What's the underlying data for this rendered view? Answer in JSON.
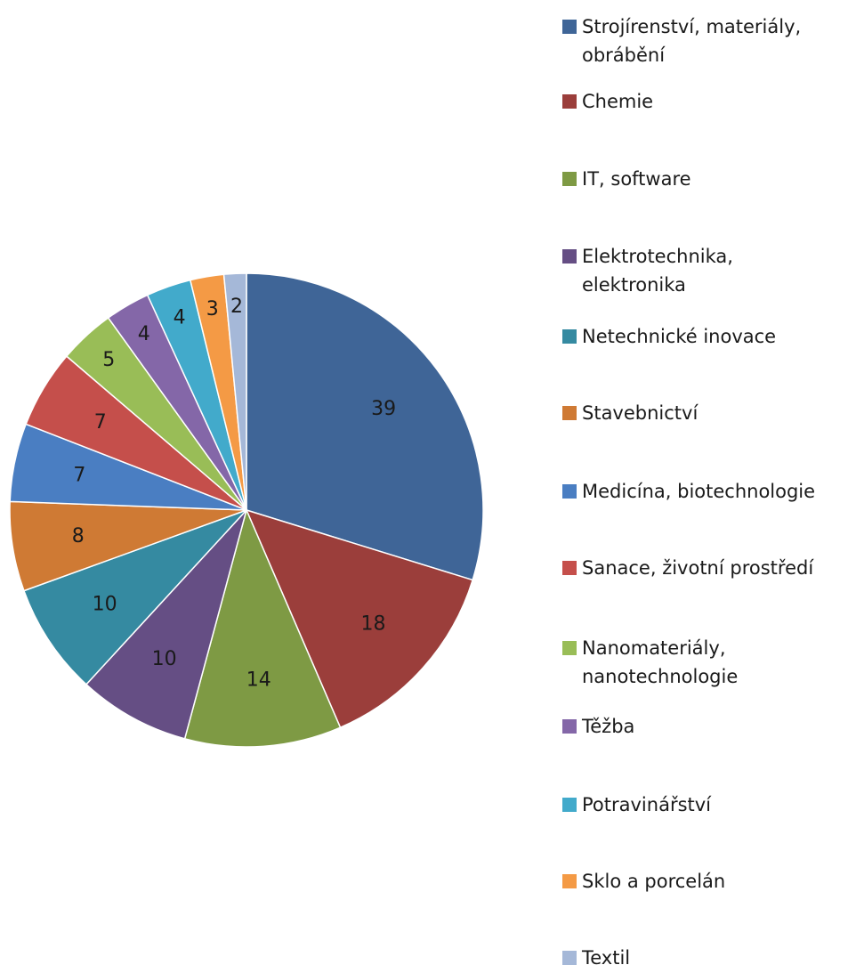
{
  "chart_data": {
    "type": "pie",
    "categories": [
      "Strojírenství, materiály, obrábění",
      "Chemie",
      "IT, software",
      "Elektrotechnika, elektronika",
      "Netechnické inovace",
      "Stavebnictví",
      "Medicína, biotechnologie",
      "Sanace, životní prostředí",
      "Nanomateriály, nanotechnologie",
      "Těžba",
      "Potravinářství",
      "Sklo a porcelán",
      "Textil"
    ],
    "legend_labels": [
      "Strojírenství, materiály,\nobrábění",
      "Chemie",
      "IT, software",
      "Elektrotechnika,\nelektronika",
      "Netechnické inovace",
      "Stavebnictví",
      "Medicína, biotechnologie",
      "Sanace, životní prostředí",
      "Nanomateriály,\nnanotechnologie",
      "Těžba",
      "Potravinářství",
      "Sklo a porcelán",
      "Textil"
    ],
    "values": [
      39,
      18,
      14,
      10,
      10,
      8,
      7,
      7,
      5,
      4,
      4,
      3,
      2
    ],
    "data_labels": [
      "39",
      "18",
      "14",
      "10",
      "10",
      "8",
      "7",
      "7",
      "5",
      "4",
      "4",
      "3",
      "2"
    ],
    "colors": [
      "#3F6597",
      "#9B3E3B",
      "#7E9A44",
      "#654E84",
      "#358AA1",
      "#CF7A34",
      "#4A7EC2",
      "#C54F4B",
      "#99BD57",
      "#8467A8",
      "#42AACB",
      "#F49A45",
      "#A5B8D8"
    ],
    "title": "",
    "legend_position": "right",
    "start_angle": "12 o'clock",
    "direction": "clockwise"
  }
}
